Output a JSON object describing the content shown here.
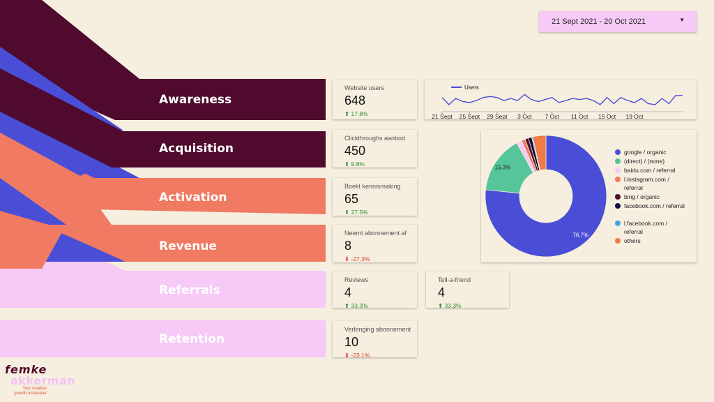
{
  "date_range": {
    "label": "21 Sept 2021 - 20 Oct 2021"
  },
  "stages": [
    {
      "label": "Awareness",
      "color": "#4f0a2e"
    },
    {
      "label": "Acquisition",
      "color": "#4f0a2e"
    },
    {
      "label": "Activation",
      "color": "#f07a62"
    },
    {
      "label": "Revenue",
      "color": "#f07a62"
    },
    {
      "label": "Referrals",
      "color": "#f6c9f6"
    },
    {
      "label": "Retention",
      "color": "#f6c9f6"
    }
  ],
  "metrics": {
    "website_users": {
      "label": "Website users",
      "value": "648",
      "change": "17.8%",
      "direction": "up"
    },
    "clickthroughs": {
      "label": "Clickthroughs aanbod",
      "value": "450",
      "change": "9.8%",
      "direction": "up"
    },
    "kennismaking": {
      "label": "Boekt kennismaking",
      "value": "65",
      "change": "27.5%",
      "direction": "up"
    },
    "abonnement": {
      "label": "Neemt abonnement af",
      "value": "8",
      "change": "-27.3%",
      "direction": "down"
    },
    "reviews": {
      "label": "Reviews",
      "value": "4",
      "change": "33.3%",
      "direction": "up"
    },
    "tell_a_friend": {
      "label": "Tell-a-friend",
      "value": "4",
      "change": "33.3%",
      "direction": "up"
    },
    "verlenging": {
      "label": "Verlenging abonnement",
      "value": "10",
      "change": "-23.1%",
      "direction": "down"
    }
  },
  "arrows": {
    "up": "⬆",
    "down": "⬇"
  },
  "chart_data": [
    {
      "type": "line",
      "title": "",
      "series": [
        {
          "name": "Users",
          "color": "#4a4ed6",
          "values": [
            24,
            17,
            23,
            20,
            19,
            21,
            24,
            25,
            24,
            21,
            23,
            21,
            27,
            22,
            20,
            22,
            24,
            19,
            21,
            23,
            22,
            23,
            21,
            17,
            24,
            18,
            24,
            21,
            19,
            23,
            18,
            17,
            23,
            18,
            26,
            26
          ]
        }
      ],
      "x_ticks": [
        "21 Sept",
        "25 Sept",
        "29 Sept",
        "3 Oct",
        "7 Oct",
        "11 Oct",
        "15 Oct",
        "19 Oct"
      ]
    },
    {
      "type": "pie",
      "donut": true,
      "slices": [
        {
          "label": "google / organic",
          "value": 76.7,
          "color": "#4a4ed6",
          "show_pct": "76.7%"
        },
        {
          "label": "(direct) / (none)",
          "value": 15.3,
          "color": "#56c59a",
          "show_pct": "15.3%"
        },
        {
          "label": "baidu.com / referral",
          "value": 1.4,
          "color": "#f6c9f6"
        },
        {
          "label": "l.instagram.com / referral",
          "value": 1.0,
          "color": "#f07a62"
        },
        {
          "label": "bing / organic",
          "value": 0.9,
          "color": "#4f0a2e"
        },
        {
          "label": "facebook.com / referral",
          "value": 0.9,
          "color": "#0d0a3e"
        },
        {
          "label": "l.facebook.com / referral",
          "value": 0.3,
          "color": "#3fa6e2"
        },
        {
          "label": "others",
          "value": 3.5,
          "color": "#f07a48"
        }
      ]
    }
  ],
  "logo": {
    "line1": "femke",
    "line2": "akkerman",
    "tagline1": "Your creative",
    "tagline2": "growth marketeer"
  },
  "colors": {
    "background": "#f6efdf",
    "plum": "#4f0a2e",
    "coral": "#f07a62",
    "pink": "#f6c9f6",
    "blue": "#4a4ed6"
  }
}
